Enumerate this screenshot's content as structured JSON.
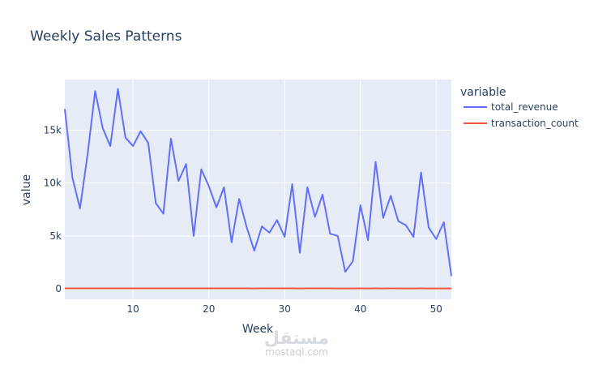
{
  "chart_data": {
    "type": "line",
    "title": "Weekly Sales Patterns",
    "xlabel": "Week",
    "ylabel": "value",
    "xlim": [
      1,
      52
    ],
    "ylim": [
      -1000,
      19800
    ],
    "x_ticks": [
      10,
      20,
      30,
      40,
      50
    ],
    "y_ticks": [
      0,
      5000,
      10000,
      15000
    ],
    "y_tick_labels": [
      "0",
      "5k",
      "10k",
      "15k"
    ],
    "legend_title": "variable",
    "legend_position": "right",
    "grid": true,
    "series": [
      {
        "name": "total_revenue",
        "color": "#636efa",
        "x": [
          1,
          2,
          3,
          4,
          5,
          6,
          7,
          8,
          9,
          10,
          11,
          12,
          13,
          14,
          15,
          16,
          17,
          18,
          19,
          20,
          21,
          22,
          23,
          24,
          25,
          26,
          27,
          28,
          29,
          30,
          31,
          32,
          33,
          34,
          35,
          36,
          37,
          38,
          39,
          40,
          41,
          42,
          43,
          44,
          45,
          46,
          47,
          48,
          49,
          50,
          51,
          52
        ],
        "values": [
          17000,
          10500,
          7600,
          12700,
          18700,
          15200,
          13500,
          18900,
          14300,
          13500,
          14900,
          13800,
          8100,
          7100,
          14200,
          10200,
          11800,
          5000,
          11300,
          9700,
          7700,
          9600,
          4400,
          8500,
          5800,
          3600,
          5900,
          5300,
          6500,
          4900,
          9900,
          3400,
          9600,
          6800,
          8900,
          5200,
          5000,
          1600,
          2600,
          7900,
          4600,
          12000,
          6700,
          8800,
          6400,
          6000,
          4900,
          11000,
          5800,
          4700,
          6300,
          1200
        ]
      },
      {
        "name": "transaction_count",
        "color": "#ef553b",
        "x": [
          1,
          2,
          3,
          4,
          5,
          6,
          7,
          8,
          9,
          10,
          11,
          12,
          13,
          14,
          15,
          16,
          17,
          18,
          19,
          20,
          21,
          22,
          23,
          24,
          25,
          26,
          27,
          28,
          29,
          30,
          31,
          32,
          33,
          34,
          35,
          36,
          37,
          38,
          39,
          40,
          41,
          42,
          43,
          44,
          45,
          46,
          47,
          48,
          49,
          50,
          51,
          52
        ],
        "values": [
          40,
          38,
          36,
          38,
          40,
          38,
          37,
          40,
          38,
          37,
          39,
          38,
          35,
          34,
          38,
          36,
          37,
          33,
          36,
          35,
          34,
          35,
          32,
          34,
          33,
          31,
          33,
          32,
          33,
          32,
          35,
          30,
          35,
          33,
          34,
          32,
          31,
          28,
          29,
          32,
          30,
          35,
          31,
          33,
          31,
          31,
          30,
          34,
          31,
          30,
          31,
          27
        ]
      }
    ]
  },
  "watermark": {
    "arabic": "مستقل",
    "latin": "mostaql.com"
  }
}
